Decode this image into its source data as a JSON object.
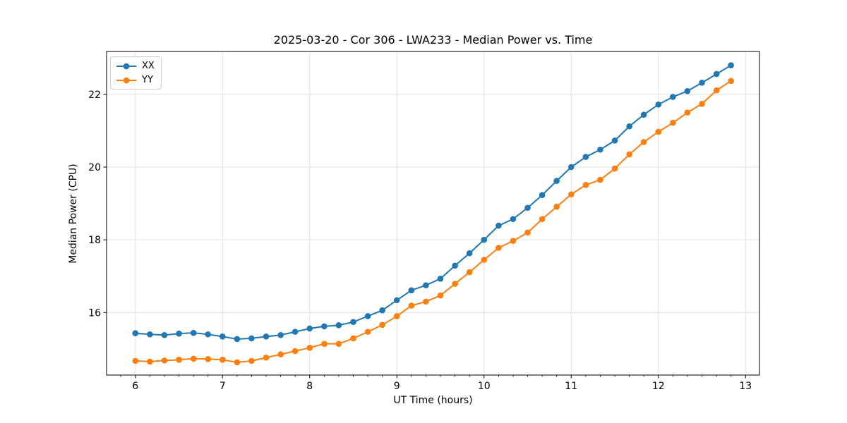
{
  "chart_data": {
    "type": "line",
    "title": "2025-03-20 - Cor 306 - LWA233 - Median Power vs. Time",
    "xlabel": "UT Time (hours)",
    "ylabel": "Median Power (CPU)",
    "xlim": [
      5.67,
      13.16
    ],
    "ylim": [
      14.28,
      23.18
    ],
    "xticks": [
      6,
      7,
      8,
      9,
      10,
      11,
      12,
      13
    ],
    "yticks": [
      16,
      18,
      20,
      22
    ],
    "x_minor_step": 0.16667,
    "grid": "major-both",
    "grid_color": "#e0e0e0",
    "legend_position": "upper-left",
    "x": [
      6.0,
      6.167,
      6.333,
      6.5,
      6.667,
      6.833,
      7.0,
      7.167,
      7.333,
      7.5,
      7.667,
      7.833,
      8.0,
      8.167,
      8.333,
      8.5,
      8.667,
      8.833,
      9.0,
      9.167,
      9.333,
      9.5,
      9.667,
      9.833,
      10.0,
      10.167,
      10.333,
      10.5,
      10.667,
      10.833,
      11.0,
      11.167,
      11.333,
      11.5,
      11.667,
      11.833,
      12.0,
      12.167,
      12.333,
      12.5,
      12.667,
      12.833
    ],
    "series": [
      {
        "name": "XX",
        "color": "#1f77b4",
        "values": [
          15.43,
          15.4,
          15.38,
          15.42,
          15.44,
          15.4,
          15.34,
          15.27,
          15.29,
          15.34,
          15.38,
          15.47,
          15.56,
          15.62,
          15.65,
          15.74,
          15.9,
          16.06,
          16.34,
          16.61,
          16.75,
          16.93,
          17.29,
          17.63,
          18.0,
          18.39,
          18.57,
          18.88,
          19.23,
          19.62,
          20.0,
          20.28,
          20.48,
          20.73,
          21.12,
          21.44,
          21.72,
          21.93,
          22.09,
          22.32,
          22.56,
          22.8
        ]
      },
      {
        "name": "YY",
        "color": "#ff7f0e",
        "values": [
          14.67,
          14.65,
          14.68,
          14.7,
          14.73,
          14.72,
          14.7,
          14.63,
          14.67,
          14.76,
          14.85,
          14.94,
          15.03,
          15.14,
          15.14,
          15.29,
          15.47,
          15.66,
          15.9,
          16.19,
          16.3,
          16.47,
          16.79,
          17.11,
          17.45,
          17.78,
          17.97,
          18.2,
          18.57,
          18.91,
          19.25,
          19.51,
          19.65,
          19.96,
          20.35,
          20.69,
          20.97,
          21.22,
          21.5,
          21.74,
          22.11,
          22.37
        ]
      }
    ]
  }
}
